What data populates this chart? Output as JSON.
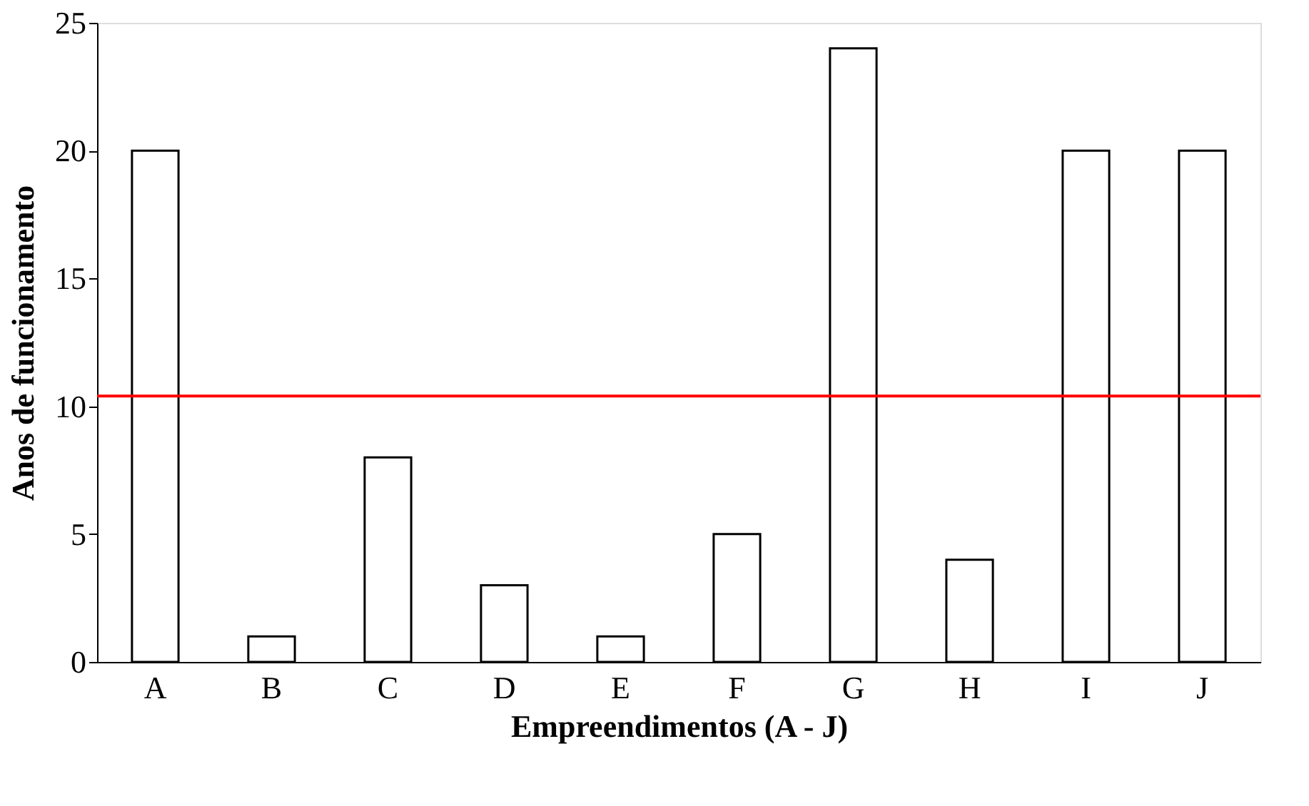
{
  "chart_data": {
    "type": "bar",
    "xlabel": "Empreendimentos (A - J)",
    "ylabel": "Anos de funcionamento",
    "categories": [
      "A",
      "B",
      "C",
      "D",
      "E",
      "F",
      "G",
      "H",
      "I",
      "J"
    ],
    "values": [
      20,
      1,
      8,
      3,
      1,
      5,
      24,
      4,
      20,
      20
    ],
    "color": "#ffffff",
    "ylim": [
      0,
      25
    ],
    "yticks": [
      0,
      5,
      10,
      15,
      20,
      25
    ],
    "grid": false,
    "ref_lines": [
      {
        "axis": "y",
        "value": 10.4,
        "color": "#ff0000",
        "line_style": "solid"
      }
    ]
  }
}
